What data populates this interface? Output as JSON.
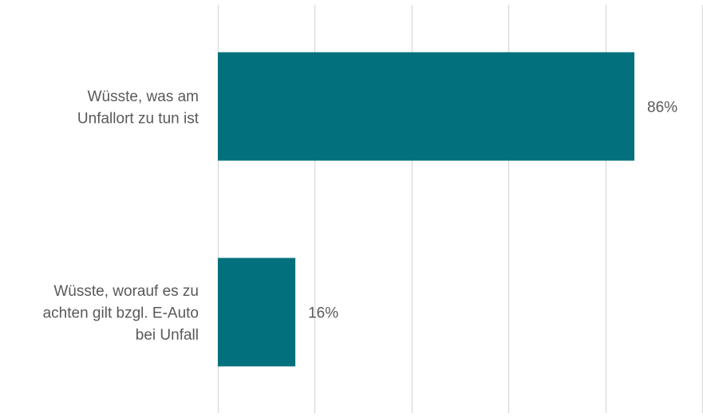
{
  "chart_data": {
    "type": "bar",
    "orientation": "horizontal",
    "categories": [
      [
        "Wüsste, was am",
        "Unfallort zu tun ist"
      ],
      [
        "Wüsste, worauf es zu",
        "achten gilt bzgl. E-Auto",
        "bei Unfall"
      ]
    ],
    "values": [
      86,
      16
    ],
    "value_labels": [
      "86%",
      "16%"
    ],
    "xlim": [
      0,
      100
    ],
    "gridlines": "vertical",
    "bar_color": "#02707D",
    "grid_color": "#D9D9D9",
    "label_color": "#595959"
  }
}
